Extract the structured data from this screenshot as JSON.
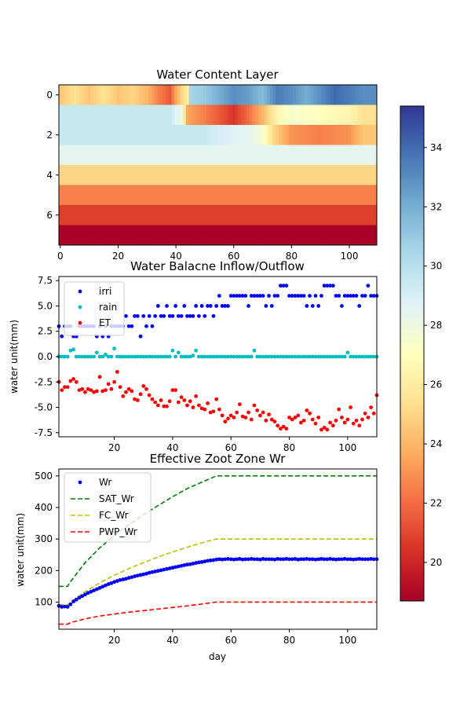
{
  "chart_data": [
    {
      "type": "heatmap",
      "title": "Water Content Layer",
      "xlim": [
        -0.5,
        109.5
      ],
      "ylim": [
        7.5,
        -0.5
      ],
      "xticks": [
        0,
        20,
        40,
        60,
        80,
        100
      ],
      "yticks": [
        0,
        2,
        4,
        6
      ],
      "layers": [
        {
          "layer": 0,
          "segments": [
            [
              0,
              24.5
            ],
            [
              5,
              25.5
            ],
            [
              10,
              24.5
            ],
            [
              15,
              25.5
            ],
            [
              20,
              24.5
            ],
            [
              25,
              25.0
            ],
            [
              30,
              24.0
            ],
            [
              34,
              22.5
            ],
            [
              38,
              21.5
            ],
            [
              40,
              23.5
            ],
            [
              42,
              25.0
            ],
            [
              44,
              26.0
            ],
            [
              45,
              30.5
            ],
            [
              50,
              31.0
            ],
            [
              55,
              32.0
            ],
            [
              60,
              33.0
            ],
            [
              65,
              32.5
            ],
            [
              70,
              31.5
            ],
            [
              75,
              33.5
            ],
            [
              80,
              33.0
            ],
            [
              85,
              32.0
            ],
            [
              90,
              33.0
            ],
            [
              95,
              34.0
            ],
            [
              100,
              33.5
            ],
            [
              105,
              33.0
            ],
            [
              110,
              null
            ]
          ]
        },
        {
          "layer": 1,
          "segments": [
            [
              0,
              29.5
            ],
            [
              38,
              29.5
            ],
            [
              42,
              28.0
            ],
            [
              44,
              23.5
            ],
            [
              50,
              22.5
            ],
            [
              55,
              21.5
            ],
            [
              60,
              20.5
            ],
            [
              65,
              22.0
            ],
            [
              70,
              24.0
            ],
            [
              75,
              26.5
            ],
            [
              80,
              27.5
            ],
            [
              90,
              27.0
            ],
            [
              100,
              26.5
            ],
            [
              105,
              25.5
            ],
            [
              110,
              null
            ]
          ]
        },
        {
          "layer": 2,
          "segments": [
            [
              0,
              29.5
            ],
            [
              50,
              29.5
            ],
            [
              55,
              29.0
            ],
            [
              65,
              28.5
            ],
            [
              70,
              27.5
            ],
            [
              74,
              25.0
            ],
            [
              80,
              23.0
            ],
            [
              90,
              22.5
            ],
            [
              100,
              23.0
            ],
            [
              105,
              24.5
            ],
            [
              110,
              null
            ]
          ]
        },
        {
          "layer": 3,
          "value": 28.5
        },
        {
          "layer": 4,
          "value": 25.0
        },
        {
          "layer": 5,
          "value": 22.5
        },
        {
          "layer": 6,
          "value": 20.8
        },
        {
          "layer": 7,
          "value": 18.8
        }
      ],
      "colorbar": {
        "colormap": "RdYlBu",
        "range": [
          18.7,
          35.4
        ],
        "ticks": [
          20,
          22,
          24,
          26,
          28,
          30,
          32,
          34
        ]
      }
    },
    {
      "type": "scatter",
      "title": "Water Balacne Inflow/Outflow",
      "xlabel": "",
      "ylabel": "water unit(mm)",
      "xlim": [
        1,
        110
      ],
      "ylim": [
        -7.9,
        7.9
      ],
      "xticks": [
        20,
        40,
        60,
        80,
        100
      ],
      "yticks": [
        -7.5,
        -5.0,
        -2.5,
        0.0,
        2.5,
        5.0,
        7.5
      ],
      "grid": false,
      "legend": "top-left",
      "x": [
        1,
        2,
        3,
        4,
        5,
        6,
        7,
        8,
        9,
        10,
        11,
        12,
        13,
        14,
        15,
        16,
        17,
        18,
        19,
        20,
        21,
        22,
        23,
        24,
        25,
        26,
        27,
        28,
        29,
        30,
        31,
        32,
        33,
        34,
        35,
        36,
        37,
        38,
        39,
        40,
        41,
        42,
        43,
        44,
        45,
        46,
        47,
        48,
        49,
        50,
        51,
        52,
        53,
        54,
        55,
        56,
        57,
        58,
        59,
        60,
        61,
        62,
        63,
        64,
        65,
        66,
        67,
        68,
        69,
        70,
        71,
        72,
        73,
        74,
        75,
        76,
        77,
        78,
        79,
        80,
        81,
        82,
        83,
        84,
        85,
        86,
        87,
        88,
        89,
        90,
        91,
        92,
        93,
        94,
        95,
        96,
        97,
        98,
        99,
        100,
        101,
        102,
        103,
        104,
        105,
        106,
        107,
        108,
        109,
        110
      ],
      "series": [
        {
          "name": "irri",
          "color": "#0000ff",
          "values": [
            3,
            2,
            3,
            3,
            3,
            2,
            2,
            3,
            3,
            3,
            3,
            3,
            3,
            2,
            3,
            2,
            3,
            2,
            3,
            3,
            3,
            3,
            3,
            4,
            3,
            3,
            4,
            4,
            2,
            4,
            3,
            4,
            3,
            4,
            5,
            4,
            4,
            5,
            4,
            4,
            5,
            4,
            4,
            5,
            4,
            4,
            4,
            5,
            4,
            5,
            4,
            5,
            5,
            4,
            5,
            6,
            5,
            5,
            5,
            6,
            6,
            6,
            6,
            6,
            6,
            5,
            6,
            6,
            6,
            6,
            6,
            5,
            6,
            5,
            6,
            6,
            7,
            7,
            7,
            6,
            6,
            6,
            6,
            6,
            6,
            5,
            6,
            5,
            6,
            5,
            6,
            7,
            7,
            7,
            7,
            6,
            6,
            5,
            6,
            6,
            6,
            6,
            6,
            5,
            6,
            6,
            7,
            6,
            6,
            6
          ]
        },
        {
          "name": "rain",
          "color": "#00bfbf",
          "values": [
            0,
            0,
            0,
            0,
            0.6,
            0.7,
            0,
            0,
            0,
            0,
            0,
            0,
            0,
            0.4,
            0,
            0,
            0.2,
            0,
            0,
            0.8,
            0,
            0,
            0,
            0,
            0,
            0,
            0,
            0,
            0,
            0,
            0,
            0,
            0,
            0,
            0,
            0,
            0,
            0,
            0,
            0.6,
            0,
            0.4,
            0,
            0,
            0,
            0,
            0.1,
            0.6,
            0,
            0,
            0,
            0,
            0,
            0,
            0,
            0,
            0,
            0,
            0,
            0,
            0,
            0,
            0,
            0,
            0,
            0,
            0,
            0.6,
            0,
            0,
            0,
            0,
            0,
            0,
            0,
            0,
            0,
            0,
            0,
            0,
            0,
            0,
            0,
            0,
            0,
            0,
            0,
            0,
            0,
            0,
            0,
            0,
            0,
            0,
            0,
            0,
            0,
            0,
            0,
            0.4,
            0,
            0,
            0,
            0,
            0,
            0,
            0,
            0,
            0,
            0
          ]
        },
        {
          "name": "ET",
          "color": "#ff0000",
          "values": [
            -2.5,
            -3.3,
            -3.0,
            -3.0,
            -2.4,
            -2.2,
            -2.5,
            -3.3,
            -3.2,
            -3.5,
            -3.2,
            -3.3,
            -3.5,
            -3.4,
            -2.0,
            -3.4,
            -3.3,
            -2.7,
            -3.2,
            -2.5,
            -1.5,
            -3.0,
            -3.9,
            -3.5,
            -3.2,
            -3.4,
            -4.2,
            -4.3,
            -3.7,
            -2.9,
            -3.2,
            -3.8,
            -4.2,
            -4.5,
            -4.8,
            -4.3,
            -4.9,
            -4.9,
            -4.4,
            -3.3,
            -3.3,
            -4.5,
            -4.0,
            -4.3,
            -4.8,
            -4.4,
            -5.0,
            -3.9,
            -4.8,
            -5.1,
            -5.2,
            -4.6,
            -5.5,
            -5.4,
            -4.2,
            -5.2,
            -5.8,
            -6.4,
            -6.1,
            -5.8,
            -6.0,
            -5.5,
            -4.7,
            -5.9,
            -6.0,
            -5.5,
            -6.2,
            -4.8,
            -5.3,
            -5.8,
            -5.5,
            -6.3,
            -5.7,
            -6.2,
            -6.4,
            -6.8,
            -7.1,
            -6.9,
            -7.1,
            -6.0,
            -6.2,
            -6.0,
            -5.8,
            -6.5,
            -6.3,
            -5.3,
            -5.6,
            -6.2,
            -6.6,
            -6.0,
            -7.2,
            -7.0,
            -7.2,
            -6.5,
            -6.8,
            -6.3,
            -5.2,
            -6.0,
            -6.5,
            -6.2,
            -5.0,
            -6.6,
            -6.3,
            -6.8,
            -6.2,
            -5.6,
            -6.0,
            -5.0,
            -5.6,
            -3.8
          ]
        }
      ]
    },
    {
      "type": "line",
      "title": "Effective Zoot Zone Wr",
      "xlabel": "day",
      "ylabel": "water unit(mm)",
      "xlim": [
        1,
        110
      ],
      "ylim": [
        14,
        522
      ],
      "xticks": [
        20,
        40,
        60,
        80,
        100
      ],
      "yticks": [
        100,
        200,
        300,
        400,
        500
      ],
      "grid": false,
      "legend": "top-left",
      "series": [
        {
          "name": "Wr",
          "style": "markers",
          "color": "#0000ff",
          "x": [
            1,
            2,
            3,
            4,
            5,
            6,
            7,
            8,
            9,
            10,
            11,
            12,
            13,
            14,
            15,
            16,
            17,
            18,
            19,
            20,
            21,
            22,
            23,
            24,
            25,
            26,
            27,
            28,
            29,
            30,
            31,
            32,
            33,
            34,
            35,
            36,
            37,
            38,
            39,
            40,
            41,
            42,
            43,
            44,
            45,
            46,
            47,
            48,
            49,
            50,
            51,
            52,
            53,
            54,
            55,
            56,
            57,
            58,
            59,
            60,
            61,
            62,
            63,
            64,
            65,
            66,
            67,
            68,
            69,
            70,
            71,
            72,
            73,
            74,
            75,
            76,
            77,
            78,
            79,
            80,
            81,
            82,
            83,
            84,
            85,
            86,
            87,
            88,
            89,
            90,
            91,
            92,
            93,
            94,
            95,
            96,
            97,
            98,
            99,
            100,
            101,
            102,
            103,
            104,
            105,
            106,
            107,
            108,
            109,
            110
          ],
          "values": [
            88,
            85,
            86,
            85,
            93,
            102,
            108,
            114,
            119,
            124,
            129,
            133,
            137,
            141,
            145,
            149,
            153,
            157,
            160,
            164,
            167,
            170,
            172,
            174,
            177,
            179,
            182,
            184,
            186,
            188,
            190,
            193,
            195,
            197,
            199,
            201,
            203,
            205,
            207,
            209,
            211,
            213,
            215,
            217,
            219,
            220,
            222,
            224,
            226,
            227,
            229,
            231,
            232,
            233,
            235,
            236,
            235,
            236,
            237,
            236,
            235,
            236,
            237,
            235,
            236,
            236,
            237,
            236,
            236,
            235,
            237,
            236,
            236,
            236,
            235,
            237,
            236,
            236,
            237,
            236,
            236,
            237,
            235,
            236,
            236,
            237,
            236,
            236,
            235,
            236,
            237,
            236,
            236,
            237,
            236,
            235,
            236,
            236,
            237,
            236,
            236,
            235,
            236,
            237,
            236,
            236,
            236,
            237,
            236,
            236
          ]
        },
        {
          "name": "SAT_Wr",
          "style": "dashed",
          "color": "#008000",
          "x": [
            1,
            4,
            5,
            10,
            15,
            20,
            25,
            30,
            35,
            40,
            45,
            50,
            55,
            110
          ],
          "values": [
            150,
            150,
            165,
            225,
            272,
            311,
            345,
            377,
            406,
            434,
            460,
            480,
            500,
            500
          ]
        },
        {
          "name": "FC_Wr",
          "style": "dashed",
          "color": "#bfbf00",
          "x": [
            1,
            4,
            5,
            10,
            15,
            20,
            25,
            30,
            35,
            40,
            45,
            50,
            55,
            110
          ],
          "values": [
            92,
            92,
            100,
            133,
            161,
            185,
            206,
            225,
            243,
            259,
            274,
            288,
            300,
            300
          ]
        },
        {
          "name": "PWP_Wr",
          "style": "dashed",
          "color": "#ff0000",
          "x": [
            1,
            4,
            5,
            10,
            15,
            20,
            25,
            30,
            35,
            40,
            45,
            50,
            55,
            110
          ],
          "values": [
            30,
            30,
            35,
            47,
            56,
            62,
            68,
            73,
            78,
            83,
            88,
            94,
            100,
            100
          ]
        }
      ]
    }
  ]
}
